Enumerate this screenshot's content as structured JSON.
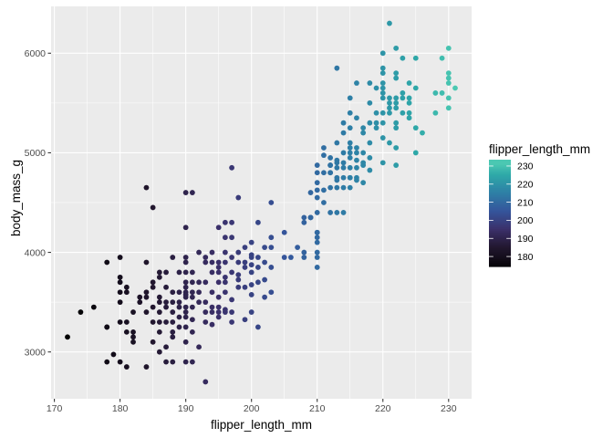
{
  "chart_data": {
    "type": "scatter",
    "title": "",
    "xlabel": "flipper_length_mm",
    "ylabel": "body_mass_g",
    "xlim": [
      169.5,
      233.5
    ],
    "ylim": [
      2530,
      6470
    ],
    "xticks": [
      170,
      180,
      190,
      200,
      210,
      220,
      230
    ],
    "yticks": [
      3000,
      4000,
      5000,
      6000
    ],
    "grid": true,
    "panel_background": "#ebebeb",
    "grid_color": "#ffffff",
    "legend": {
      "title": "flipper_length_mm",
      "placement": "right",
      "labels": [
        "230",
        "220",
        "210",
        "200",
        "190",
        "180"
      ],
      "color_stops": [
        {
          "value": 172,
          "color": "#000000"
        },
        {
          "value": 185,
          "color": "#22172f"
        },
        {
          "value": 195,
          "color": "#3b306a"
        },
        {
          "value": 205,
          "color": "#35559b"
        },
        {
          "value": 215,
          "color": "#2e7fa6"
        },
        {
          "value": 225,
          "color": "#2ea8a8"
        },
        {
          "value": 231,
          "color": "#4bc8b2"
        }
      ]
    },
    "points": [
      [
        172,
        3150
      ],
      [
        174,
        3400
      ],
      [
        176,
        3450
      ],
      [
        178,
        3250
      ],
      [
        178,
        3250
      ],
      [
        178,
        2900
      ],
      [
        178,
        3900
      ],
      [
        179,
        2975
      ],
      [
        180,
        3600
      ],
      [
        180,
        3950
      ],
      [
        180,
        3700
      ],
      [
        180,
        3500
      ],
      [
        180,
        3300
      ],
      [
        180,
        3750
      ],
      [
        180,
        2900
      ],
      [
        181,
        3200
      ],
      [
        181,
        3300
      ],
      [
        181,
        3600
      ],
      [
        181,
        2850
      ],
      [
        181,
        3650
      ],
      [
        182,
        3150
      ],
      [
        182,
        3400
      ],
      [
        182,
        3100
      ],
      [
        182,
        3200
      ],
      [
        183,
        3500
      ],
      [
        183,
        3550
      ],
      [
        184,
        3550
      ],
      [
        184,
        3600
      ],
      [
        184,
        3400
      ],
      [
        184,
        3900
      ],
      [
        184,
        2850
      ],
      [
        184,
        4650
      ],
      [
        185,
        3650
      ],
      [
        185,
        3450
      ],
      [
        185,
        3300
      ],
      [
        185,
        3700
      ],
      [
        185,
        3100
      ],
      [
        185,
        4450
      ],
      [
        186,
        3800
      ],
      [
        186,
        3500
      ],
      [
        186,
        3400
      ],
      [
        186,
        3300
      ],
      [
        186,
        3000
      ],
      [
        186,
        3550
      ],
      [
        186,
        3200
      ],
      [
        186,
        3750
      ],
      [
        187,
        3650
      ],
      [
        187,
        3300
      ],
      [
        187,
        3450
      ],
      [
        187,
        3050
      ],
      [
        187,
        2900
      ],
      [
        187,
        3800
      ],
      [
        187,
        3500
      ],
      [
        188,
        3300
      ],
      [
        188,
        2900
      ],
      [
        188,
        3600
      ],
      [
        188,
        3950
      ],
      [
        188,
        3400
      ],
      [
        188,
        3500
      ],
      [
        188,
        3150
      ],
      [
        188,
        3200
      ],
      [
        189,
        3450
      ],
      [
        189,
        3800
      ],
      [
        189,
        3250
      ],
      [
        189,
        3600
      ],
      [
        189,
        3350
      ],
      [
        189,
        3500
      ],
      [
        190,
        3700
      ],
      [
        190,
        3250
      ],
      [
        190,
        3450
      ],
      [
        190,
        3600
      ],
      [
        190,
        3900
      ],
      [
        190,
        4600
      ],
      [
        190,
        3550
      ],
      [
        190,
        3950
      ],
      [
        190,
        3100
      ],
      [
        190,
        3400
      ],
      [
        190,
        3800
      ],
      [
        190,
        2900
      ],
      [
        190,
        3650
      ],
      [
        190,
        4250
      ],
      [
        190,
        3350
      ],
      [
        190,
        3575
      ],
      [
        191,
        3700
      ],
      [
        191,
        3600
      ],
      [
        191,
        3550
      ],
      [
        191,
        3800
      ],
      [
        191,
        3450
      ],
      [
        191,
        3200
      ],
      [
        191,
        4600
      ],
      [
        191,
        2900
      ],
      [
        191,
        3325
      ],
      [
        192,
        3500
      ],
      [
        192,
        3700
      ],
      [
        192,
        4000
      ],
      [
        192,
        3050
      ],
      [
        192,
        3600
      ],
      [
        193,
        3400
      ],
      [
        193,
        3950
      ],
      [
        193,
        3500
      ],
      [
        193,
        3700
      ],
      [
        193,
        2700
      ],
      [
        193,
        3300
      ],
      [
        193,
        3900
      ],
      [
        194,
        3800
      ],
      [
        194,
        3450
      ],
      [
        194,
        3600
      ],
      [
        194,
        3900
      ],
      [
        194,
        3400
      ],
      [
        194,
        4000
      ],
      [
        194,
        3275
      ],
      [
        195,
        3400
      ],
      [
        195,
        3700
      ],
      [
        195,
        3900
      ],
      [
        195,
        3450
      ],
      [
        195,
        4250
      ],
      [
        195,
        3350
      ],
      [
        195,
        3850
      ],
      [
        195,
        3550
      ],
      [
        195,
        3800
      ],
      [
        196,
        4000
      ],
      [
        196,
        3700
      ],
      [
        196,
        3400
      ],
      [
        196,
        4150
      ],
      [
        196,
        3600
      ],
      [
        196,
        3750
      ],
      [
        196,
        3900
      ],
      [
        196,
        3425
      ],
      [
        196,
        4300
      ],
      [
        197,
        3950
      ],
      [
        197,
        3525
      ],
      [
        197,
        3300
      ],
      [
        197,
        4300
      ],
      [
        197,
        4850
      ],
      [
        197,
        3800
      ],
      [
        197,
        3400
      ],
      [
        197,
        4150
      ],
      [
        198,
        4550
      ],
      [
        198,
        3725
      ],
      [
        198,
        3650
      ],
      [
        198,
        3900
      ],
      [
        198,
        3775
      ],
      [
        198,
        4000
      ],
      [
        199,
        3850
      ],
      [
        199,
        3650
      ],
      [
        199,
        3325
      ],
      [
        199,
        4050
      ],
      [
        199,
        3900
      ],
      [
        200,
        3975
      ],
      [
        200,
        3950
      ],
      [
        200,
        4100
      ],
      [
        200,
        3800
      ],
      [
        200,
        3575
      ],
      [
        200,
        3400
      ],
      [
        200,
        3675
      ],
      [
        200,
        3875
      ],
      [
        201,
        3950
      ],
      [
        201,
        3250
      ],
      [
        201,
        4300
      ],
      [
        201,
        3850
      ],
      [
        201,
        3700
      ],
      [
        202,
        3725
      ],
      [
        202,
        3900
      ],
      [
        202,
        3550
      ],
      [
        202,
        4050
      ],
      [
        203,
        4050
      ],
      [
        203,
        3600
      ],
      [
        203,
        4150
      ],
      [
        203,
        4500
      ],
      [
        203,
        3850
      ],
      [
        205,
        4200
      ],
      [
        205,
        3950
      ],
      [
        206,
        3950
      ],
      [
        207,
        4050
      ],
      [
        208,
        4300
      ],
      [
        208,
        3950
      ],
      [
        208,
        4350
      ],
      [
        208,
        4000
      ],
      [
        209,
        4600
      ],
      [
        209,
        4350
      ],
      [
        209,
        4350
      ],
      [
        209,
        4350
      ],
      [
        210,
        4400
      ],
      [
        210,
        4625
      ],
      [
        210,
        4100
      ],
      [
        210,
        3950
      ],
      [
        210,
        4000
      ],
      [
        210,
        4200
      ],
      [
        210,
        4700
      ],
      [
        210,
        4800
      ],
      [
        210,
        4875
      ],
      [
        210,
        4550
      ],
      [
        210,
        3850
      ],
      [
        210,
        4200
      ],
      [
        210,
        4150
      ],
      [
        211,
        4625
      ],
      [
        211,
        4800
      ],
      [
        211,
        4500
      ],
      [
        211,
        5050
      ],
      [
        211,
        4975
      ],
      [
        212,
        4875
      ],
      [
        212,
        4875
      ],
      [
        212,
        4400
      ],
      [
        212,
        4800
      ],
      [
        212,
        4950
      ],
      [
        212,
        4800
      ],
      [
        212,
        4650
      ],
      [
        213,
        4850
      ],
      [
        213,
        4650
      ],
      [
        213,
        5850
      ],
      [
        213,
        4400
      ],
      [
        213,
        5100
      ],
      [
        213,
        4900
      ],
      [
        213,
        4750
      ],
      [
        213,
        4925
      ],
      [
        213,
        4725
      ],
      [
        214,
        4850
      ],
      [
        214,
        5000
      ],
      [
        214,
        4650
      ],
      [
        214,
        4400
      ],
      [
        214,
        5200
      ],
      [
        214,
        4900
      ],
      [
        214,
        5300
      ],
      [
        214,
        4750
      ],
      [
        215,
        5550
      ],
      [
        215,
        4650
      ],
      [
        215,
        5100
      ],
      [
        215,
        4950
      ],
      [
        215,
        5000
      ],
      [
        215,
        4750
      ],
      [
        215,
        5250
      ],
      [
        215,
        5400
      ],
      [
        215,
        4850
      ],
      [
        215,
        5050
      ],
      [
        215,
        4750
      ],
      [
        216,
        5050
      ],
      [
        216,
        4750
      ],
      [
        216,
        4925
      ],
      [
        216,
        4850
      ],
      [
        216,
        5700
      ],
      [
        216,
        5000
      ],
      [
        216,
        5350
      ],
      [
        216,
        4725
      ],
      [
        217,
        5250
      ],
      [
        217,
        4875
      ],
      [
        217,
        5000
      ],
      [
        217,
        4900
      ],
      [
        217,
        4700
      ],
      [
        217,
        5200
      ],
      [
        218,
        5500
      ],
      [
        218,
        5700
      ],
      [
        218,
        4825
      ],
      [
        218,
        5300
      ],
      [
        218,
        5100
      ],
      [
        218,
        4950
      ],
      [
        219,
        5400
      ],
      [
        219,
        5650
      ],
      [
        219,
        5250
      ],
      [
        219,
        5300
      ],
      [
        220,
        5600
      ],
      [
        220,
        5150
      ],
      [
        220,
        5300
      ],
      [
        220,
        5400
      ],
      [
        220,
        5850
      ],
      [
        220,
        6000
      ],
      [
        220,
        5550
      ],
      [
        220,
        5800
      ],
      [
        220,
        5700
      ],
      [
        220,
        5650
      ],
      [
        220,
        4900
      ],
      [
        221,
        5400
      ],
      [
        221,
        5500
      ],
      [
        221,
        6300
      ],
      [
        221,
        5550
      ],
      [
        221,
        5450
      ],
      [
        221,
        5100
      ],
      [
        222,
        5250
      ],
      [
        222,
        5050
      ],
      [
        222,
        5450
      ],
      [
        222,
        5550
      ],
      [
        222,
        5750
      ],
      [
        222,
        5300
      ],
      [
        222,
        5500
      ],
      [
        222,
        4875
      ],
      [
        222,
        6050
      ],
      [
        222,
        5800
      ],
      [
        223,
        5950
      ],
      [
        223,
        5550
      ],
      [
        223,
        5600
      ],
      [
        223,
        5400
      ],
      [
        224,
        5350
      ],
      [
        224,
        5550
      ],
      [
        224,
        5500
      ],
      [
        224,
        5700
      ],
      [
        224,
        5400
      ],
      [
        225,
        5000
      ],
      [
        225,
        5950
      ],
      [
        225,
        5650
      ],
      [
        225,
        5250
      ],
      [
        226,
        5200
      ],
      [
        228,
        5400
      ],
      [
        228,
        5600
      ],
      [
        229,
        5950
      ],
      [
        229,
        5600
      ],
      [
        230,
        5750
      ],
      [
        230,
        5700
      ],
      [
        230,
        5550
      ],
      [
        230,
        5800
      ],
      [
        230,
        6050
      ],
      [
        230,
        5450
      ],
      [
        231,
        5650
      ]
    ]
  }
}
